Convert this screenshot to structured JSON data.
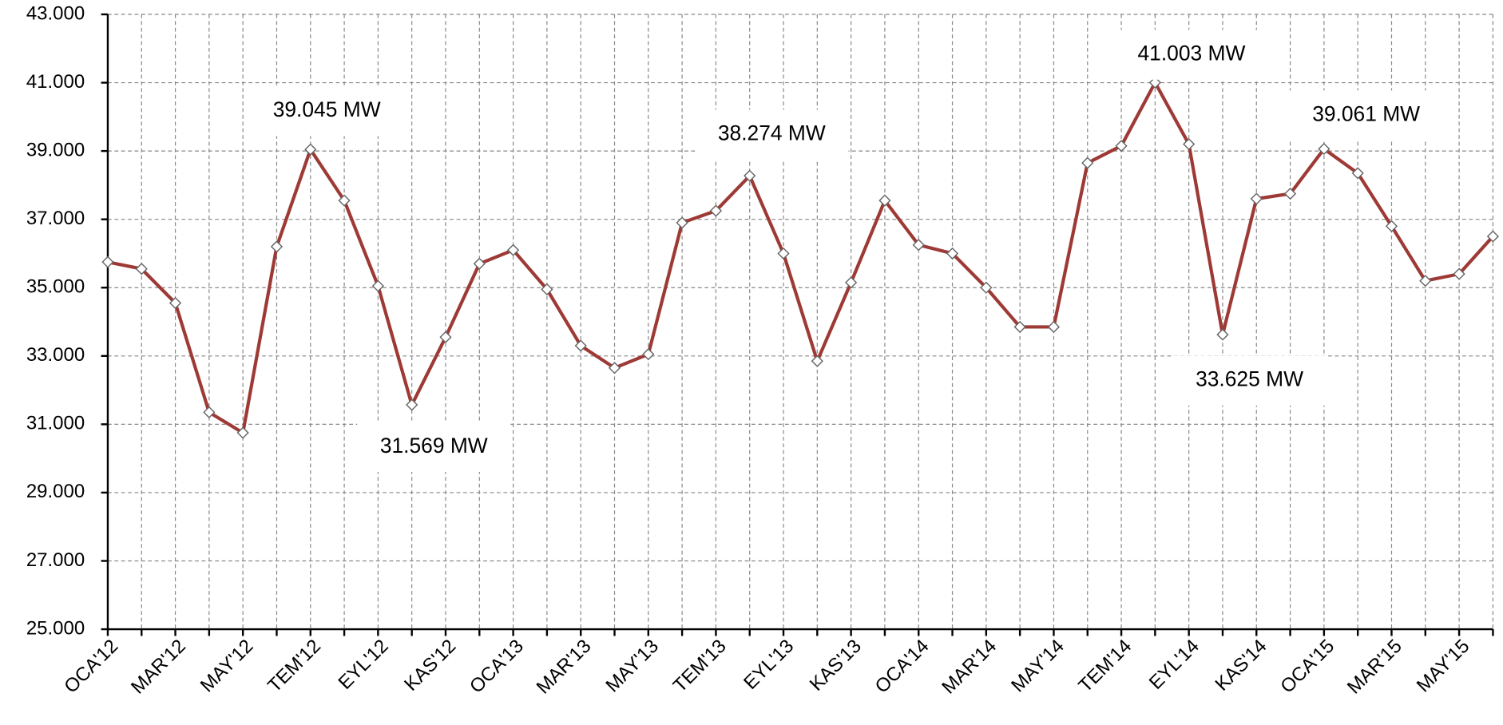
{
  "chart_data": {
    "type": "line",
    "categories": [
      "OCA'12",
      null,
      "MAR'12",
      null,
      "MAY'12",
      null,
      "TEM'12",
      null,
      "EYL'12",
      null,
      "KAS'12",
      null,
      "OCA'13",
      null,
      "MAR'13",
      null,
      "MAY'13",
      null,
      "TEM'13",
      null,
      "EYL'13",
      null,
      "KAS'13",
      null,
      "OCA'14",
      null,
      "MAR'14",
      null,
      "MAY'14",
      null,
      "TEM'14",
      null,
      "EYL'14",
      null,
      "KAS'14",
      null,
      "OCA'15",
      null,
      "MAR'15",
      null,
      "MAY'15",
      null
    ],
    "series": [
      {
        "color": "#9e3a36",
        "values": [
          35750,
          35550,
          34550,
          31350,
          30750,
          36200,
          39045,
          37550,
          35050,
          31569,
          33550,
          35700,
          36100,
          34950,
          33300,
          32650,
          33050,
          36900,
          37250,
          38274,
          36000,
          32850,
          35150,
          37550,
          36250,
          36000,
          35000,
          33850,
          33850,
          38650,
          39150,
          41003,
          39200,
          33625,
          37600,
          37750,
          39061,
          38350,
          36800,
          35200,
          35400,
          36500
        ],
        "value_labels": [
          null,
          null,
          null,
          null,
          null,
          null,
          "39.045 MW",
          null,
          null,
          "31.569 MW",
          null,
          null,
          null,
          null,
          null,
          null,
          null,
          null,
          null,
          "38.274 MW",
          null,
          null,
          null,
          null,
          null,
          null,
          null,
          null,
          null,
          null,
          null,
          "41.003 MW",
          null,
          "33.625 MW",
          null,
          null,
          "39.061 MW",
          null,
          null,
          null,
          null,
          null
        ]
      }
    ],
    "ylim": [
      25000,
      43000
    ],
    "yticks": [
      {
        "value": 25000,
        "label": "25.000"
      },
      {
        "value": 27000,
        "label": "27.000"
      },
      {
        "value": 29000,
        "label": "29.000"
      },
      {
        "value": 31000,
        "label": "31.000"
      },
      {
        "value": 33000,
        "label": "33.000"
      },
      {
        "value": 35000,
        "label": "35.000"
      },
      {
        "value": 37000,
        "label": "37.000"
      },
      {
        "value": 39000,
        "label": "39.000"
      },
      {
        "value": 41000,
        "label": "41.000"
      },
      {
        "value": 43000,
        "label": "43.000"
      }
    ],
    "grid": true
  }
}
